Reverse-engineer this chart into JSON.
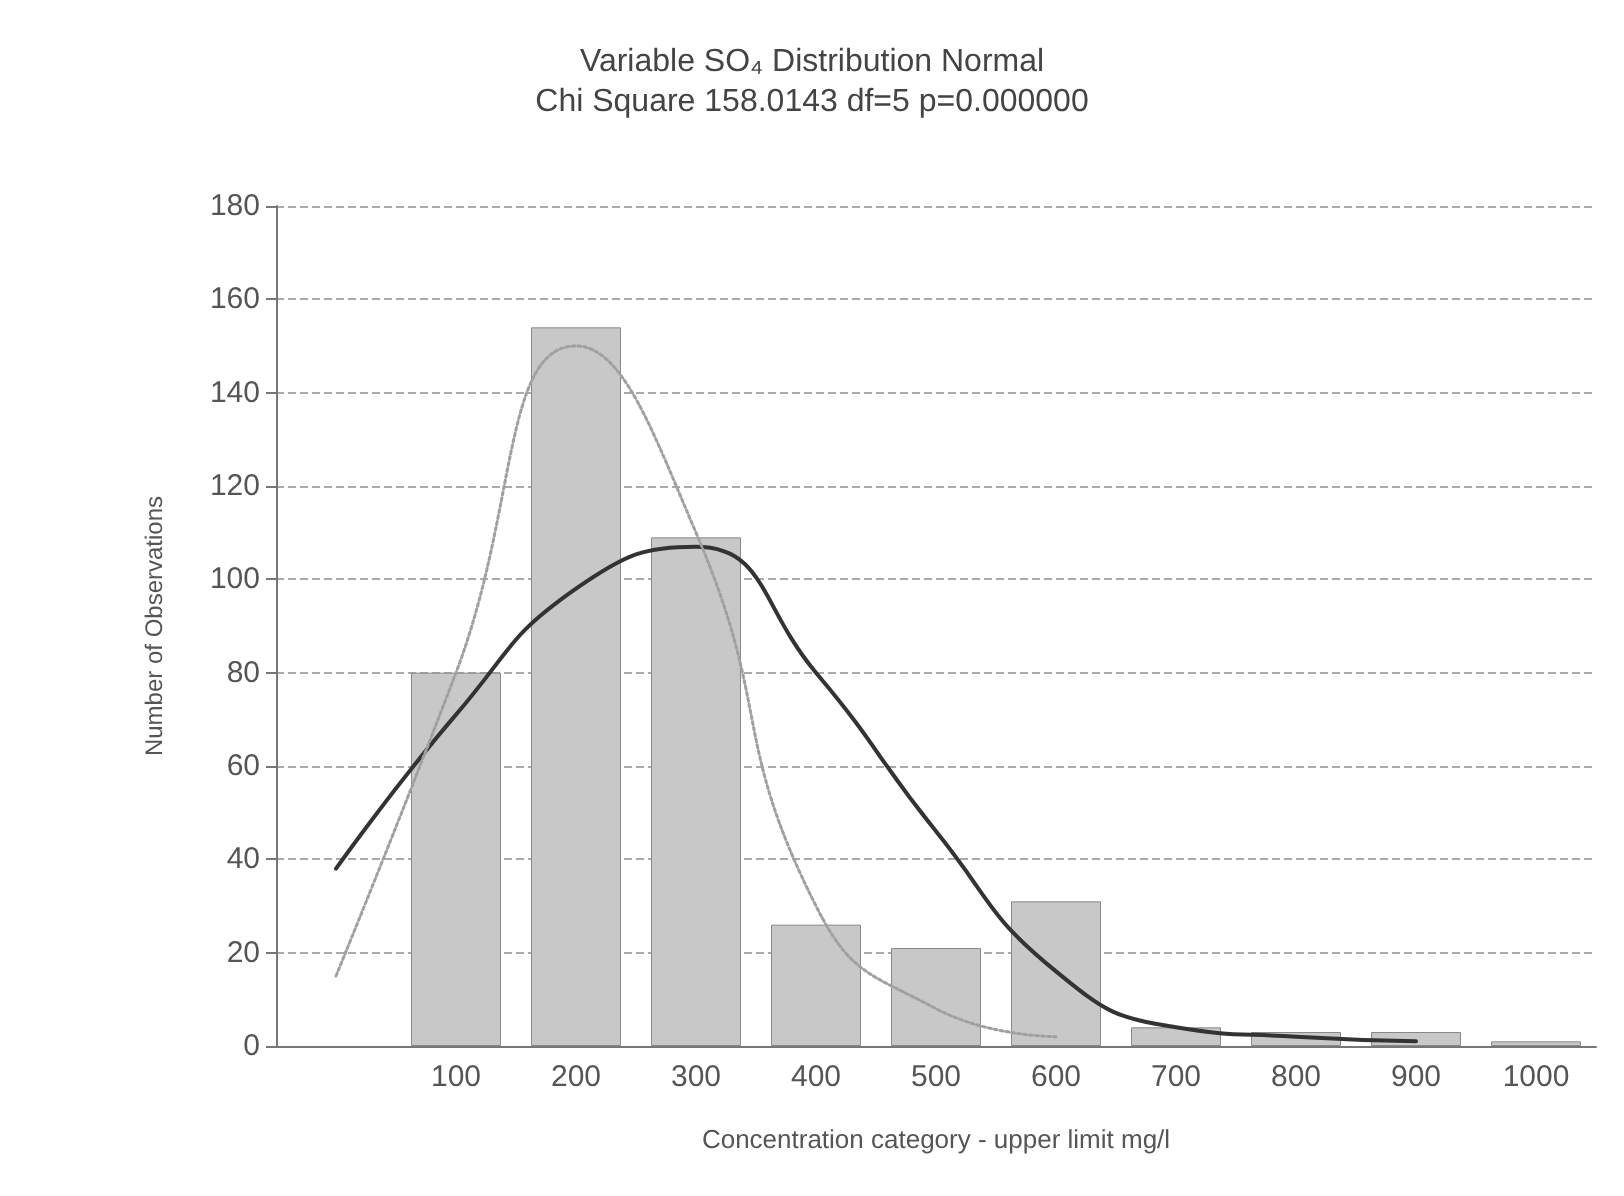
{
  "chart_data": {
    "type": "bar",
    "title": "Variable SO₄ Distribution Normal",
    "subtitle": "Chi Square 158.0143 df=5 p=0.000000",
    "xlabel": "Concentration category - upper limit mg/l",
    "ylabel": "Number of Observations",
    "categories": [
      null,
      "100",
      "200",
      "300",
      "400",
      "500",
      "600",
      "700",
      "800",
      "900",
      "1000"
    ],
    "series": [
      {
        "color": "#c8c8c8",
        "values": [
          null,
          80,
          154,
          109,
          26,
          21,
          31,
          4,
          3,
          3,
          1
        ]
      },
      {
        "type": "line",
        "color": "#333333",
        "line_style": "solid",
        "values": [
          38,
          71,
          98,
          107,
          80,
          46,
          16,
          4,
          2,
          1,
          null
        ]
      },
      {
        "type": "line",
        "color": "#a0a0a0",
        "line_style": "dotted",
        "values": [
          15,
          80,
          150,
          110,
          30,
          8,
          2,
          null,
          null,
          null,
          null
        ]
      }
    ],
    "ylim": [
      0,
      180
    ],
    "yticks": [
      0,
      20,
      40,
      60,
      80,
      100,
      120,
      140,
      160,
      180
    ],
    "grid": "y",
    "marker": "none"
  }
}
